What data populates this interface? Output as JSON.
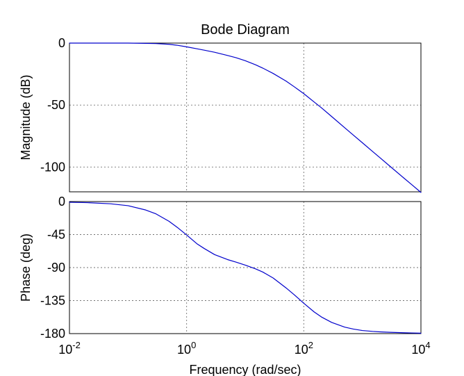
{
  "chart_data": {
    "type": "line",
    "title": "Bode Diagram",
    "xlabel": "Frequency  (rad/sec)",
    "x_axis": {
      "scale": "log",
      "ticks": [
        0.01,
        1,
        100,
        10000
      ],
      "tick_labels": [
        {
          "base": "10",
          "exp": "-2"
        },
        {
          "base": "10",
          "exp": "0"
        },
        {
          "base": "10",
          "exp": "2"
        },
        {
          "base": "10",
          "exp": "4"
        }
      ],
      "xlim": [
        0.01,
        10000
      ],
      "grid": true
    },
    "panels": [
      {
        "name": "magnitude",
        "ylabel": "Magnitude (dB)",
        "ylim": [
          -120,
          0
        ],
        "yticks": [
          0,
          -50,
          -100
        ],
        "ytick_labels": [
          "0",
          "-50",
          "-100"
        ],
        "grid": true,
        "series": [
          {
            "color": "#0000cc",
            "x": [
              0.01,
              0.02,
              0.05,
              0.1,
              0.2,
              0.3,
              0.5,
              0.7,
              1,
              1.5,
              2,
              3,
              5,
              7,
              10,
              15,
              20,
              30,
              50,
              70,
              100,
              150,
              200,
              300,
              500,
              700,
              1000,
              1500,
              2000,
              3000,
              5000,
              7000,
              10000
            ],
            "y": [
              0,
              0,
              0,
              0,
              -0.2,
              -0.4,
              -1,
              -1.8,
              -3,
              -4.6,
              -5.7,
              -7.4,
              -10,
              -11.8,
              -14.2,
              -17.5,
              -20.2,
              -24.5,
              -30.7,
              -35.5,
              -40.8,
              -47.5,
              -52.2,
              -59.3,
              -68.3,
              -74.2,
              -80.4,
              -87.5,
              -92.5,
              -99.6,
              -108.5,
              -114.3,
              -120.5
            ]
          }
        ]
      },
      {
        "name": "phase",
        "ylabel": "Phase (deg)",
        "ylim": [
          -180,
          0
        ],
        "yticks": [
          0,
          -45,
          -90,
          -135,
          -180
        ],
        "ytick_labels": [
          "0",
          "-45",
          "-90",
          "-135",
          "-180"
        ],
        "grid": true,
        "series": [
          {
            "color": "#0000cc",
            "x": [
              0.01,
              0.02,
              0.05,
              0.1,
              0.2,
              0.3,
              0.5,
              0.7,
              1,
              1.5,
              2,
              3,
              5,
              7,
              10,
              15,
              20,
              30,
              50,
              70,
              100,
              150,
              200,
              300,
              500,
              700,
              1000,
              1500,
              2000,
              3000,
              5000,
              7000,
              10000
            ],
            "y": [
              -1,
              -1.5,
              -3,
              -5.6,
              -11.5,
              -16.8,
              -26.9,
              -35.5,
              -45.5,
              -57.5,
              -64,
              -72.3,
              -79.1,
              -82.6,
              -86.6,
              -91.7,
              -96.1,
              -104.2,
              -117.8,
              -127.6,
              -138.6,
              -150.4,
              -157.3,
              -164.8,
              -171.2,
              -173.8,
              -175.8,
              -177,
              -177.6,
              -178.2,
              -178.8,
              -179.1,
              -179.4
            ]
          }
        ]
      }
    ]
  }
}
